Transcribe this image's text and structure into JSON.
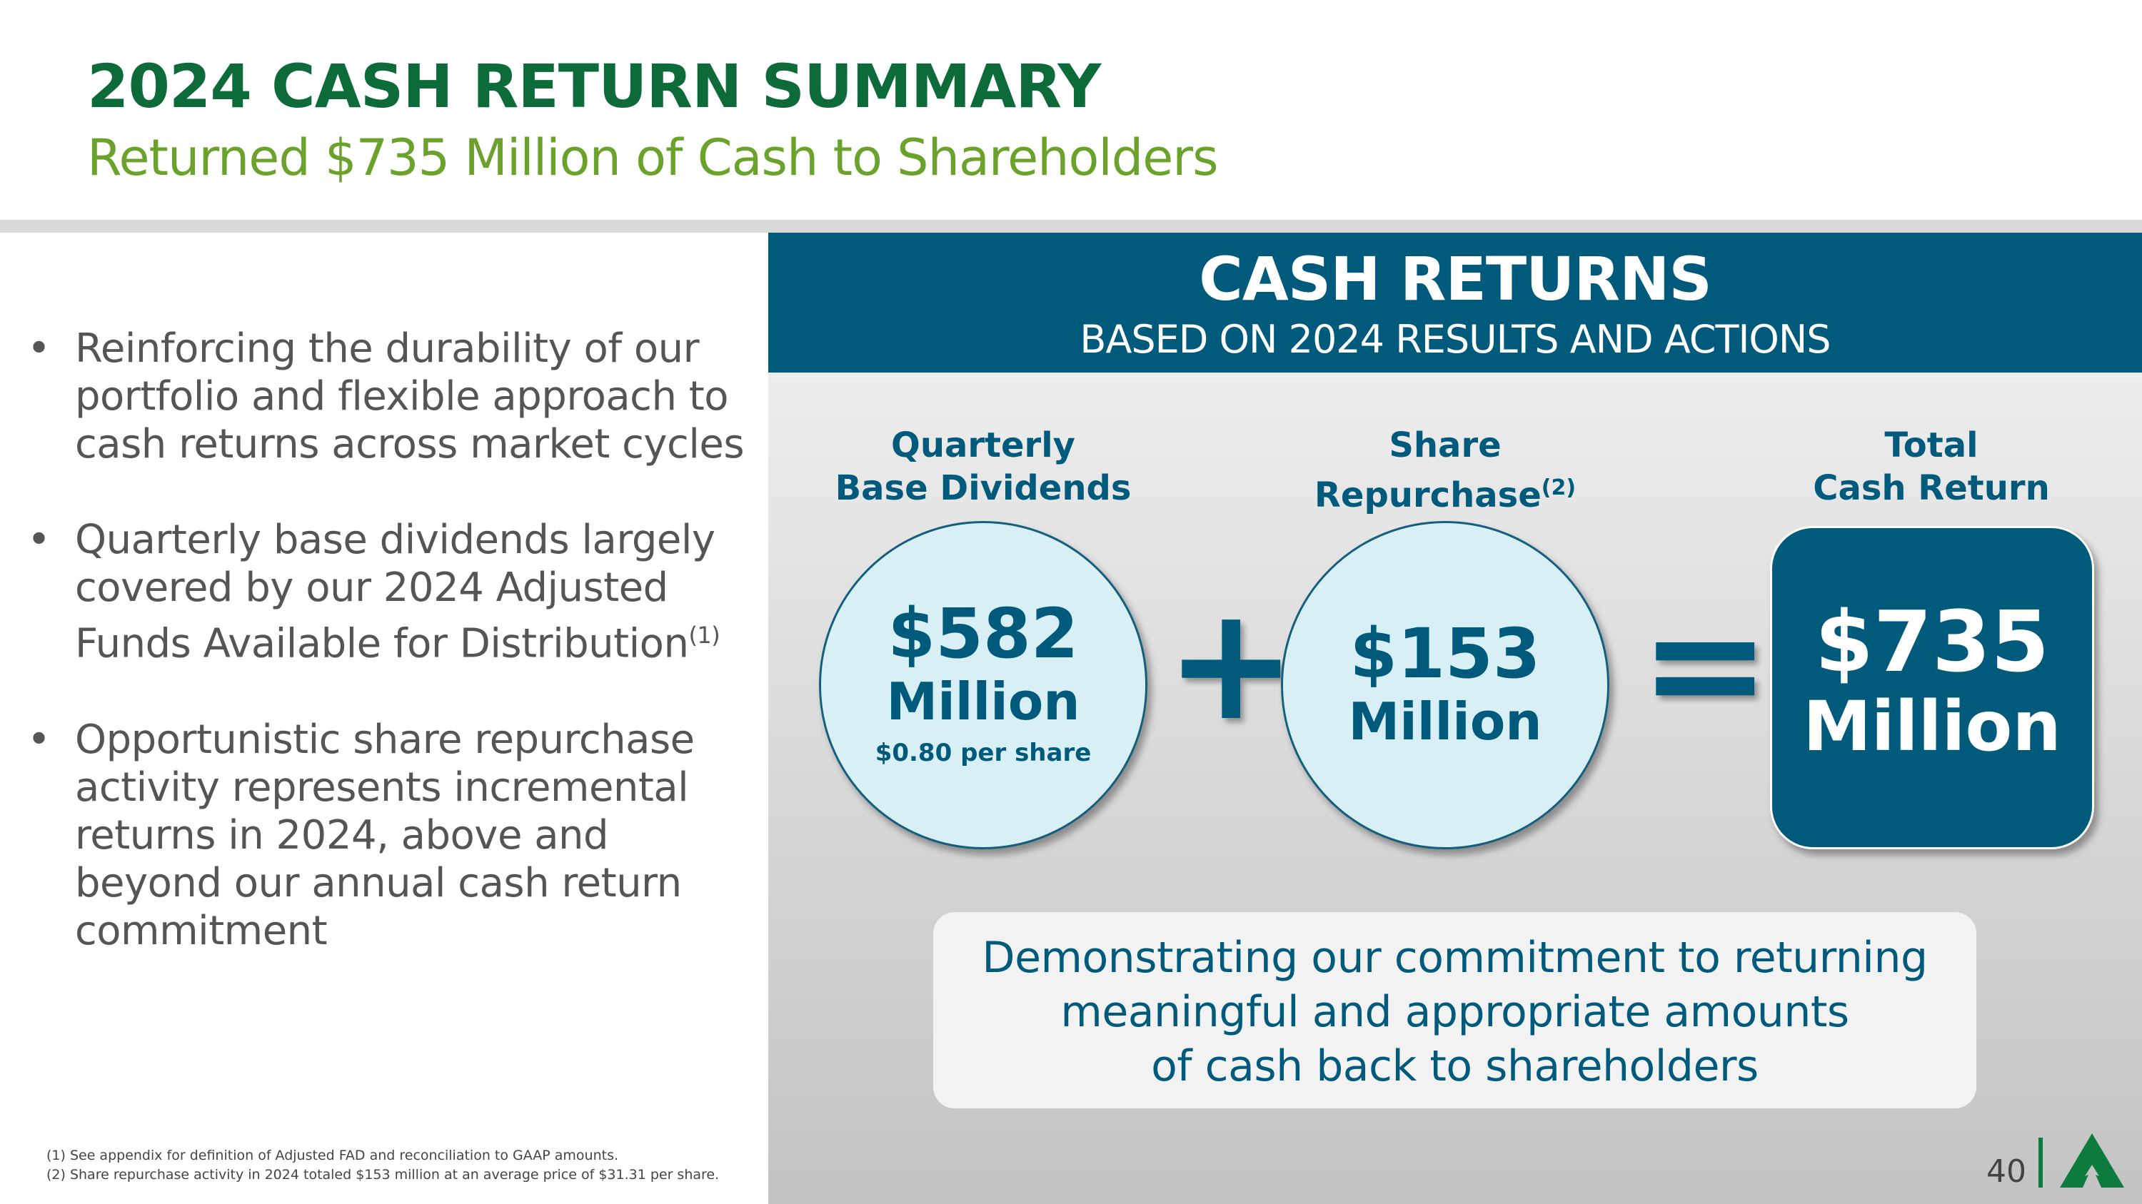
{
  "header": {
    "title": "2024 CASH RETURN SUMMARY",
    "subtitle": "Returned $735 Million of Cash to Shareholders"
  },
  "bullets": [
    {
      "text": "Reinforcing the durability of our portfolio and flexible approach to cash returns across market cycles",
      "sup": ""
    },
    {
      "text": "Quarterly base dividends largely covered by our 2024 Adjusted Funds Available for Distribution",
      "sup": "(1)"
    },
    {
      "text": "Opportunistic share repurchase activity represents incremental returns in 2024, above and beyond our annual cash return commitment",
      "sup": ""
    }
  ],
  "panel": {
    "title": "CASH RETURNS",
    "subtitle": "BASED ON 2024 RESULTS AND ACTIONS",
    "dividends": {
      "label1": "Quarterly",
      "label2": "Base Dividends",
      "amount": "$582",
      "unit": "Million",
      "per_share": "$0.80 per share"
    },
    "plus": "+",
    "repurchase": {
      "label1": "Share",
      "label2": "Repurchase",
      "sup": "(2)",
      "amount": "$153",
      "unit": "Million"
    },
    "equals": "=",
    "total": {
      "label1": "Total",
      "label2": "Cash Return",
      "amount": "$735",
      "unit": "Million"
    },
    "message": [
      "Demonstrating our commitment to returning",
      "meaningful and appropriate amounts",
      "of cash back to shareholders"
    ]
  },
  "footnotes": [
    "(1) See appendix for definition of Adjusted FAD and reconciliation to GAAP amounts.",
    "(2) Share repurchase activity in 2024 totaled $153 million at an average price of $31.31 per share."
  ],
  "page_number": "40",
  "colors": {
    "title_green": "#0d6b3a",
    "subtitle_green": "#6aa22c",
    "brand_blue": "#005a7c",
    "circle_fill": "#d8eff6"
  }
}
